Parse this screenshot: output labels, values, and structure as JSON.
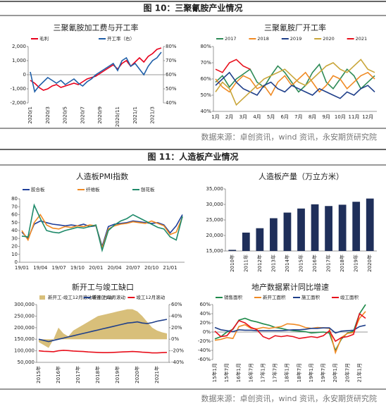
{
  "figures": [
    {
      "title": "图 10：三聚氰胺产业情况",
      "source": "数据来源：卓创资讯，wind 资讯，永安期货研究院"
    },
    {
      "title": "图 11：人造板产业情况",
      "source": "数据来源：卓创资讯，wind 资讯，永安期货研究院"
    }
  ],
  "chart_data": [
    {
      "type": "line",
      "title": "三聚氰胺加工费与开工率",
      "categories": [
        "2020/1",
        null,
        null,
        null,
        "2020/3",
        null,
        null,
        null,
        "2020/5",
        null,
        null,
        null,
        "2020/7",
        null,
        null,
        null,
        "2020/9",
        null,
        null,
        null,
        "2020/11",
        null,
        null,
        null,
        "2021/1",
        null,
        null,
        null,
        "2021/3",
        null,
        null
      ],
      "series": [
        {
          "name": "毛利",
          "color": "#e8001c",
          "values": [
            -400,
            -600,
            -900,
            -1100,
            -1000,
            -800,
            -700,
            -900,
            -800,
            -700,
            -600,
            -700,
            -500,
            -300,
            -200,
            -100,
            100,
            300,
            500,
            700,
            400,
            800,
            1000,
            600,
            900,
            1200,
            900,
            1300,
            1500,
            1800,
            1900
          ]
        },
        {
          "name": "开工率（右）",
          "color": "#1f5fa8",
          "axis": "y2",
          "values": [
            62,
            48,
            52,
            55,
            58,
            56,
            54,
            56,
            53,
            55,
            57,
            54,
            52,
            55,
            57,
            60,
            62,
            64,
            66,
            68,
            63,
            70,
            72,
            66,
            68,
            64,
            60,
            66,
            70,
            72,
            76
          ]
        }
      ],
      "ylim": [
        -2000,
        2000
      ],
      "yticks": [
        {
          "value": -2000,
          "label": "-2,000"
        },
        {
          "value": -1000,
          "label": "-1,000"
        },
        0,
        {
          "value": 1000,
          "label": "1,000"
        },
        {
          "value": 2000,
          "label": "2,000"
        }
      ],
      "y2lim": [
        40,
        80
      ],
      "y2ticks": [
        {
          "value": 40,
          "label": "40%"
        },
        {
          "value": 50,
          "label": "50%"
        },
        {
          "value": 60,
          "label": "60%"
        },
        {
          "value": 70,
          "label": "70%"
        },
        {
          "value": 80,
          "label": "80%"
        }
      ]
    },
    {
      "type": "line",
      "title": "三聚氰胺厂开工率",
      "categories": [
        "1月",
        null,
        "2月",
        null,
        "3月",
        null,
        "4月",
        null,
        "5月",
        null,
        "6月",
        null,
        "7月",
        null,
        "8月",
        null,
        "9月",
        null,
        "10月",
        null,
        "11月",
        null,
        "12月",
        null
      ],
      "series": [
        {
          "name": "2017",
          "color": "#2e8b57",
          "values": [
            58,
            62,
            55,
            60,
            63,
            66,
            58,
            55,
            62,
            68,
            64,
            58,
            52,
            56,
            64,
            69,
            58,
            54,
            60,
            66,
            62,
            54,
            58,
            62
          ]
        },
        {
          "name": "2018",
          "color": "#f08a24",
          "values": [
            60,
            55,
            52,
            58,
            62,
            60,
            54,
            56,
            50,
            58,
            62,
            56,
            60,
            64,
            58,
            52,
            56,
            62,
            60,
            54,
            58,
            62,
            64,
            60
          ]
        },
        {
          "name": "2019",
          "color": "#1f3f8a",
          "values": [
            56,
            60,
            64,
            58,
            54,
            52,
            50,
            56,
            58,
            54,
            52,
            56,
            54,
            52,
            50,
            54,
            52,
            50,
            48,
            52,
            50,
            54,
            56,
            52
          ]
        },
        {
          "name": "2020",
          "color": "#c9a63a",
          "values": [
            52,
            58,
            54,
            44,
            48,
            52,
            56,
            60,
            62,
            64,
            66,
            62,
            58,
            56,
            60,
            64,
            68,
            70,
            66,
            64,
            68,
            72,
            66,
            64
          ]
        },
        {
          "name": "2021",
          "color": "#e8101c",
          "values": [
            66,
            64,
            70,
            72,
            68,
            66,
            null,
            null,
            null,
            null,
            null,
            null,
            null,
            null,
            null,
            null,
            null,
            null,
            null,
            null,
            null,
            null,
            null,
            null
          ]
        }
      ],
      "ylim": [
        40,
        80
      ],
      "yticks": [
        {
          "value": 40,
          "label": "40%"
        },
        {
          "value": 50,
          "label": "50%"
        },
        {
          "value": 60,
          "label": "60%"
        },
        {
          "value": 70,
          "label": "70%"
        },
        {
          "value": 80,
          "label": "80%"
        }
      ]
    },
    {
      "type": "line",
      "title": "人造板PMI指数",
      "categories": [
        "19/01",
        null,
        null,
        "19/04",
        null,
        null,
        "19/07",
        null,
        null,
        "19/10",
        null,
        null,
        "20/01",
        null,
        null,
        "20/04",
        null,
        null,
        "20/07",
        null,
        null,
        "20/10",
        null,
        null,
        "21/01",
        null,
        null
      ],
      "series": [
        {
          "name": "胶合板",
          "color": "#1f3f9a",
          "values": [
            38,
            30,
            48,
            52,
            50,
            48,
            47,
            46,
            47,
            46,
            48,
            45,
            46,
            20,
            45,
            48,
            49,
            50,
            52,
            51,
            50,
            49,
            50,
            47,
            37,
            46,
            60
          ]
        },
        {
          "name": "纤维板",
          "color": "#f08a24",
          "values": [
            40,
            28,
            50,
            60,
            47,
            43,
            42,
            45,
            44,
            46,
            45,
            47,
            46,
            18,
            42,
            46,
            48,
            49,
            51,
            50,
            49,
            52,
            49,
            46,
            35,
            38,
            57
          ]
        },
        {
          "name": "刨花板",
          "color": "#1f8a6a",
          "values": [
            33,
            32,
            72,
            55,
            40,
            38,
            37,
            40,
            42,
            44,
            43,
            45,
            47,
            15,
            40,
            47,
            52,
            55,
            60,
            56,
            52,
            48,
            44,
            42,
            32,
            28,
            58
          ]
        }
      ],
      "ylim": [
        0,
        80
      ],
      "yticks": [
        0,
        10,
        20,
        30,
        40,
        50,
        60,
        70,
        80
      ]
    },
    {
      "type": "bar",
      "title": "人造板产量（万立方米）",
      "categories": [
        "2010年",
        "2011年",
        "2012年",
        "2013年",
        "2014年",
        "2015年",
        "2016年",
        "2017年",
        "2018年",
        "2019年",
        "2020年"
      ],
      "values": [
        15360,
        20919,
        22336,
        25560,
        27372,
        28680,
        30042,
        29486,
        29909,
        30859,
        31900
      ],
      "color": "#1f2f5a",
      "ylim": [
        15000,
        35000
      ],
      "yticks": [
        {
          "value": 15000,
          "label": "15,000"
        },
        {
          "value": 20000,
          "label": "20,000"
        },
        {
          "value": 25000,
          "label": "25,000"
        },
        {
          "value": 30000,
          "label": "30,000"
        },
        {
          "value": 35000,
          "label": "35,000"
        }
      ]
    },
    {
      "type": "line",
      "title": "新开工与竣工缺口",
      "categories": [
        "2015年",
        null,
        null,
        null,
        "2016年",
        null,
        null,
        null,
        "2017年",
        null,
        null,
        null,
        "2018年",
        null,
        null,
        null,
        "2019年",
        null,
        null,
        null,
        "2020年",
        null,
        null,
        null,
        "2021年",
        null,
        null
      ],
      "series": [
        {
          "name": "新开工-竣工12月滚动增速(右轴)",
          "color": "#d8bf7a",
          "axis": "y2",
          "style": "area",
          "values": [
            -5,
            -10,
            -15,
            0,
            20,
            10,
            5,
            15,
            20,
            25,
            30,
            35,
            40,
            42,
            44,
            46,
            48,
            50,
            52,
            52,
            48,
            40,
            30,
            20,
            15,
            12,
            10
          ]
        },
        {
          "name": "新开工12月滚动",
          "color": "#1f3f8a",
          "values": [
            150000,
            145000,
            140000,
            145000,
            150000,
            155000,
            160000,
            165000,
            170000,
            175000,
            180000,
            185000,
            190000,
            195000,
            200000,
            205000,
            210000,
            215000,
            220000,
            222000,
            225000,
            220000,
            218000,
            222000,
            228000,
            232000,
            236000
          ]
        },
        {
          "name": "竣工12月滚动",
          "color": "#e8101c",
          "values": [
            100000,
            98000,
            97000,
            96000,
            100000,
            102000,
            101000,
            99000,
            98000,
            97000,
            95000,
            94000,
            93000,
            92000,
            92000,
            93000,
            94000,
            95000,
            96000,
            97000,
            96000,
            94000,
            93000,
            91000,
            91000,
            92000,
            93000
          ]
        }
      ],
      "ylim": [
        50000,
        300000
      ],
      "yticks": [
        {
          "value": 50000,
          "label": "50,000"
        },
        {
          "value": 100000,
          "label": "100,000"
        },
        {
          "value": 150000,
          "label": "150,000"
        },
        {
          "value": 200000,
          "label": "200,000"
        },
        {
          "value": 250000,
          "label": "250,000"
        },
        {
          "value": 300000,
          "label": "300,000"
        }
      ],
      "y2lim": [
        -40,
        60
      ],
      "y2ticks": [
        {
          "value": -40,
          "label": "-40%"
        },
        {
          "value": -20,
          "label": "-20%"
        },
        {
          "value": 0,
          "label": "0%"
        },
        {
          "value": 20,
          "label": "20%"
        },
        {
          "value": 40,
          "label": "40%"
        },
        {
          "value": 60,
          "label": "60%"
        }
      ]
    },
    {
      "type": "line",
      "title": "地产数据累计同比增速",
      "categories": [
        "15年1月",
        null,
        "15年7月",
        null,
        "16年1月",
        null,
        "16年7月",
        null,
        "17年1月",
        null,
        "17年7月",
        null,
        "18年1月",
        null,
        "18年7月",
        null,
        "19年1月",
        null,
        "19年7月",
        null,
        "20年1月",
        null,
        "20年7月",
        null,
        "21年1月",
        null
      ],
      "series": [
        {
          "name": "销售面积",
          "color": "#1f8a4a",
          "values": [
            -15,
            -10,
            0,
            6,
            26,
            30,
            25,
            22,
            18,
            15,
            10,
            8,
            5,
            3,
            2,
            1,
            -2,
            -1,
            0,
            -2,
            -40,
            -15,
            -2,
            2,
            40,
            60
          ]
        },
        {
          "name": "新开工面积",
          "color": "#f08a24",
          "values": [
            -18,
            -16,
            -12,
            -14,
            12,
            16,
            8,
            7,
            10,
            8,
            10,
            12,
            18,
            17,
            15,
            10,
            8,
            10,
            9,
            8,
            -45,
            -12,
            -3,
            -1,
            30,
            45
          ]
        },
        {
          "name": "施工面积",
          "color": "#1f3f8a",
          "values": [
            10,
            5,
            3,
            1,
            5,
            4,
            4,
            3,
            3,
            3,
            3,
            3,
            4,
            5,
            5,
            6,
            8,
            8,
            9,
            9,
            -2,
            2,
            3,
            4,
            12,
            15
          ]
        },
        {
          "name": "竣工面积",
          "color": "#e8101c",
          "values": [
            2,
            -10,
            -8,
            7,
            25,
            20,
            10,
            5,
            -10,
            -15,
            -8,
            -10,
            -8,
            -10,
            -14,
            -12,
            -10,
            -12,
            -8,
            3,
            -20,
            -12,
            -10,
            -5,
            40,
            30
          ]
        }
      ],
      "ylim": [
        -60,
        60
      ],
      "yticks": [
        {
          "value": -60,
          "label": "-60%"
        },
        {
          "value": -40,
          "label": "-40%"
        },
        {
          "value": -20,
          "label": "-20%"
        },
        {
          "value": 0,
          "label": "0%"
        },
        {
          "value": 20,
          "label": "20%"
        },
        {
          "value": 40,
          "label": "40%"
        },
        {
          "value": 60,
          "label": "60%"
        }
      ]
    }
  ]
}
